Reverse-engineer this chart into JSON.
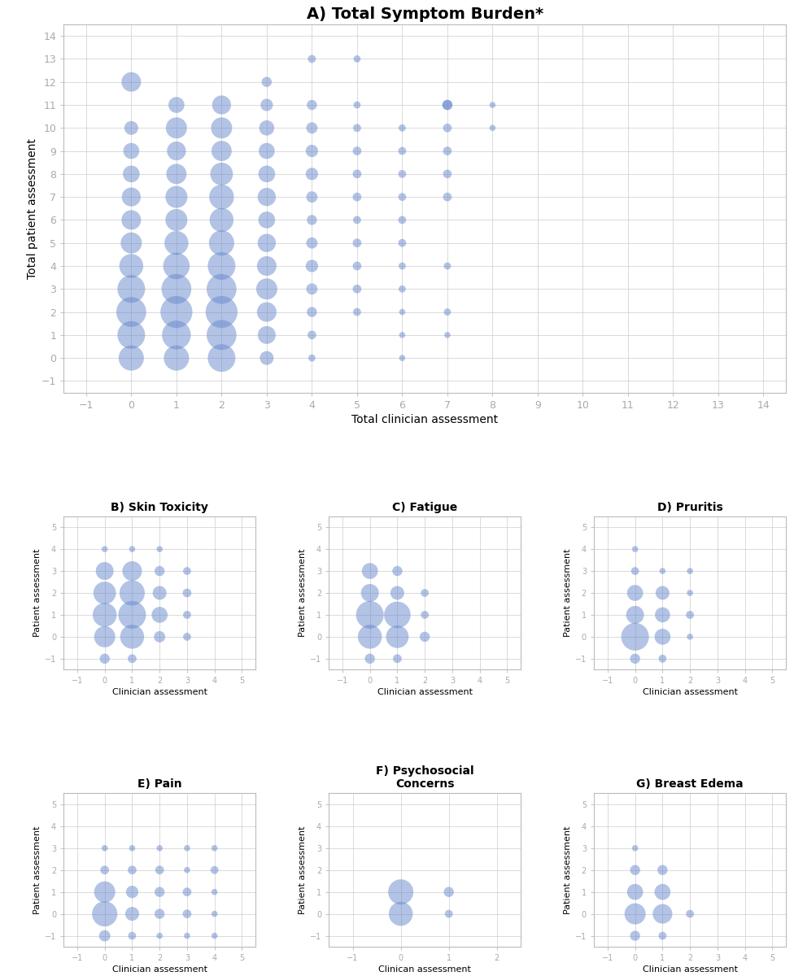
{
  "title_A": "A) Total Symptom Burden*",
  "xlabel_A": "Total clinician assessment",
  "ylabel_A": "Total patient assessment",
  "xlim_A": [
    -1.5,
    14.5
  ],
  "ylim_A": [
    -1.5,
    14.5
  ],
  "xticks_A": [
    -1,
    0,
    1,
    2,
    3,
    4,
    5,
    6,
    7,
    8,
    9,
    10,
    11,
    12,
    13,
    14
  ],
  "yticks_A": [
    -1,
    0,
    1,
    2,
    3,
    4,
    5,
    6,
    7,
    8,
    9,
    10,
    11,
    12,
    13,
    14
  ],
  "bubble_color": "#6688cc",
  "bubble_alpha": 0.5,
  "panel_A_data": [
    [
      0,
      12,
      300
    ],
    [
      0,
      10,
      150
    ],
    [
      0,
      9,
      200
    ],
    [
      0,
      8,
      220
    ],
    [
      0,
      7,
      280
    ],
    [
      0,
      6,
      300
    ],
    [
      0,
      5,
      350
    ],
    [
      0,
      4,
      450
    ],
    [
      0,
      3,
      600
    ],
    [
      0,
      2,
      700
    ],
    [
      0,
      1,
      600
    ],
    [
      0,
      0,
      500
    ],
    [
      1,
      11,
      200
    ],
    [
      1,
      10,
      350
    ],
    [
      1,
      9,
      280
    ],
    [
      1,
      8,
      320
    ],
    [
      1,
      7,
      380
    ],
    [
      1,
      6,
      380
    ],
    [
      1,
      5,
      450
    ],
    [
      1,
      4,
      550
    ],
    [
      1,
      3,
      700
    ],
    [
      1,
      2,
      800
    ],
    [
      1,
      1,
      650
    ],
    [
      1,
      0,
      500
    ],
    [
      2,
      11,
      280
    ],
    [
      2,
      10,
      350
    ],
    [
      2,
      9,
      320
    ],
    [
      2,
      8,
      400
    ],
    [
      2,
      7,
      480
    ],
    [
      2,
      6,
      450
    ],
    [
      2,
      5,
      500
    ],
    [
      2,
      4,
      600
    ],
    [
      2,
      3,
      700
    ],
    [
      2,
      2,
      800
    ],
    [
      2,
      1,
      700
    ],
    [
      2,
      0,
      600
    ],
    [
      3,
      12,
      80
    ],
    [
      3,
      11,
      120
    ],
    [
      3,
      10,
      180
    ],
    [
      3,
      9,
      200
    ],
    [
      3,
      8,
      220
    ],
    [
      3,
      7,
      260
    ],
    [
      3,
      6,
      220
    ],
    [
      3,
      5,
      260
    ],
    [
      3,
      4,
      300
    ],
    [
      3,
      3,
      350
    ],
    [
      3,
      2,
      300
    ],
    [
      3,
      1,
      250
    ],
    [
      3,
      0,
      150
    ],
    [
      4,
      13,
      50
    ],
    [
      4,
      11,
      80
    ],
    [
      4,
      10,
      100
    ],
    [
      4,
      9,
      120
    ],
    [
      4,
      8,
      120
    ],
    [
      4,
      7,
      100
    ],
    [
      4,
      6,
      80
    ],
    [
      4,
      5,
      100
    ],
    [
      4,
      4,
      120
    ],
    [
      4,
      3,
      100
    ],
    [
      4,
      2,
      80
    ],
    [
      4,
      1,
      60
    ],
    [
      4,
      0,
      40
    ],
    [
      5,
      13,
      40
    ],
    [
      5,
      11,
      40
    ],
    [
      5,
      10,
      50
    ],
    [
      5,
      9,
      60
    ],
    [
      5,
      8,
      60
    ],
    [
      5,
      7,
      60
    ],
    [
      5,
      6,
      50
    ],
    [
      5,
      5,
      60
    ],
    [
      5,
      4,
      60
    ],
    [
      5,
      3,
      60
    ],
    [
      5,
      2,
      50
    ],
    [
      6,
      10,
      40
    ],
    [
      6,
      9,
      50
    ],
    [
      6,
      8,
      50
    ],
    [
      6,
      7,
      50
    ],
    [
      6,
      6,
      50
    ],
    [
      6,
      5,
      50
    ],
    [
      6,
      4,
      40
    ],
    [
      6,
      3,
      40
    ],
    [
      6,
      2,
      30
    ],
    [
      6,
      1,
      30
    ],
    [
      6,
      0,
      30
    ],
    [
      7,
      11,
      80
    ],
    [
      7,
      11,
      80
    ],
    [
      7,
      10,
      60
    ],
    [
      7,
      9,
      60
    ],
    [
      7,
      8,
      60
    ],
    [
      7,
      7,
      60
    ],
    [
      7,
      4,
      40
    ],
    [
      7,
      2,
      40
    ],
    [
      7,
      1,
      30
    ],
    [
      8,
      11,
      30
    ],
    [
      8,
      10,
      30
    ]
  ],
  "panel_B_title": "B) Skin Toxicity",
  "panel_B_xlabel": "Clinician assessment",
  "panel_B_ylabel": "Patient assessment",
  "panel_B_xlim": [
    -1.5,
    5.5
  ],
  "panel_B_ylim": [
    -1.5,
    5.5
  ],
  "panel_B_xticks": [
    -1,
    0,
    1,
    2,
    3,
    4,
    5
  ],
  "panel_B_yticks": [
    -1,
    0,
    1,
    2,
    3,
    4,
    5
  ],
  "panel_B_data": [
    [
      0,
      4,
      30
    ],
    [
      1,
      4,
      30
    ],
    [
      2,
      4,
      30
    ],
    [
      0,
      3,
      250
    ],
    [
      1,
      3,
      300
    ],
    [
      2,
      3,
      80
    ],
    [
      3,
      3,
      50
    ],
    [
      0,
      2,
      400
    ],
    [
      1,
      2,
      500
    ],
    [
      2,
      2,
      150
    ],
    [
      3,
      2,
      60
    ],
    [
      0,
      1,
      450
    ],
    [
      1,
      1,
      600
    ],
    [
      2,
      1,
      200
    ],
    [
      3,
      1,
      50
    ],
    [
      0,
      0,
      350
    ],
    [
      1,
      0,
      450
    ],
    [
      2,
      0,
      100
    ],
    [
      3,
      0,
      50
    ],
    [
      0,
      -1,
      80
    ],
    [
      1,
      -1,
      60
    ]
  ],
  "panel_C_title": "C) Fatigue",
  "panel_C_xlabel": "Clinician assessment",
  "panel_C_ylabel": "Patient assessment",
  "panel_C_xlim": [
    -1.5,
    5.5
  ],
  "panel_C_ylim": [
    -1.5,
    5.5
  ],
  "panel_C_xticks": [
    -1,
    0,
    1,
    2,
    3,
    4,
    5
  ],
  "panel_C_yticks": [
    -1,
    0,
    1,
    2,
    3,
    4,
    5
  ],
  "panel_C_data": [
    [
      0,
      3,
      200
    ],
    [
      1,
      3,
      80
    ],
    [
      0,
      2,
      250
    ],
    [
      1,
      2,
      150
    ],
    [
      2,
      2,
      50
    ],
    [
      0,
      1,
      600
    ],
    [
      1,
      1,
      550
    ],
    [
      2,
      1,
      50
    ],
    [
      0,
      0,
      450
    ],
    [
      1,
      0,
      400
    ],
    [
      2,
      0,
      80
    ],
    [
      0,
      -1,
      80
    ],
    [
      1,
      -1,
      60
    ]
  ],
  "panel_D_title": "D) Pruritis",
  "panel_D_xlabel": "Clinician assessment",
  "panel_D_ylabel": "Patient assessment",
  "panel_D_xlim": [
    -1.5,
    5.5
  ],
  "panel_D_ylim": [
    -1.5,
    5.5
  ],
  "panel_D_xticks": [
    -1,
    0,
    1,
    2,
    3,
    4,
    5
  ],
  "panel_D_yticks": [
    -1,
    0,
    1,
    2,
    3,
    4,
    5
  ],
  "panel_D_data": [
    [
      0,
      4,
      30
    ],
    [
      0,
      3,
      50
    ],
    [
      1,
      3,
      30
    ],
    [
      2,
      3,
      30
    ],
    [
      0,
      2,
      200
    ],
    [
      1,
      2,
      150
    ],
    [
      2,
      2,
      30
    ],
    [
      0,
      1,
      250
    ],
    [
      1,
      1,
      180
    ],
    [
      2,
      1,
      50
    ],
    [
      0,
      0,
      600
    ],
    [
      1,
      0,
      200
    ],
    [
      2,
      0,
      30
    ],
    [
      0,
      -1,
      80
    ],
    [
      1,
      -1,
      50
    ]
  ],
  "panel_E_title": "E) Pain",
  "panel_E_xlabel": "Clinician assessment",
  "panel_E_ylabel": "Patient assessment",
  "panel_E_xlim": [
    -1.5,
    5.5
  ],
  "panel_E_ylim": [
    -1.5,
    5.5
  ],
  "panel_E_xticks": [
    -1,
    0,
    1,
    2,
    3,
    4,
    5
  ],
  "panel_E_yticks": [
    -1,
    0,
    1,
    2,
    3,
    4,
    5
  ],
  "panel_E_data": [
    [
      0,
      3,
      30
    ],
    [
      1,
      3,
      30
    ],
    [
      2,
      3,
      30
    ],
    [
      3,
      3,
      30
    ],
    [
      4,
      3,
      30
    ],
    [
      0,
      2,
      60
    ],
    [
      1,
      2,
      60
    ],
    [
      2,
      2,
      60
    ],
    [
      3,
      2,
      30
    ],
    [
      4,
      2,
      50
    ],
    [
      0,
      1,
      350
    ],
    [
      1,
      1,
      120
    ],
    [
      2,
      1,
      80
    ],
    [
      3,
      1,
      60
    ],
    [
      4,
      1,
      30
    ],
    [
      0,
      0,
      500
    ],
    [
      1,
      0,
      150
    ],
    [
      2,
      0,
      80
    ],
    [
      3,
      0,
      60
    ],
    [
      4,
      0,
      30
    ],
    [
      0,
      -1,
      100
    ],
    [
      1,
      -1,
      50
    ],
    [
      2,
      -1,
      30
    ],
    [
      3,
      -1,
      30
    ],
    [
      4,
      -1,
      30
    ]
  ],
  "panel_F_title": "F) Psychosocial\nConcerns",
  "panel_F_xlabel": "Clinican assessment",
  "panel_F_ylabel": "Patient assessment",
  "panel_F_xlim": [
    -1.5,
    2.5
  ],
  "panel_F_ylim": [
    -1.5,
    5.5
  ],
  "panel_F_xticks": [
    -1,
    0,
    1,
    2
  ],
  "panel_F_yticks": [
    -1,
    0,
    1,
    2,
    3,
    4,
    5
  ],
  "panel_F_data": [
    [
      0,
      1,
      500
    ],
    [
      1,
      1,
      80
    ],
    [
      0,
      0,
      450
    ],
    [
      1,
      0,
      50
    ]
  ],
  "panel_G_title": "G) Breast Edema",
  "panel_G_xlabel": "Clinician assessment",
  "panel_G_ylabel": "Patient assessment",
  "panel_G_xlim": [
    -1.5,
    5.5
  ],
  "panel_G_ylim": [
    -1.5,
    5.5
  ],
  "panel_G_xticks": [
    -1,
    0,
    1,
    2,
    3,
    4,
    5
  ],
  "panel_G_yticks": [
    -1,
    0,
    1,
    2,
    3,
    4,
    5
  ],
  "panel_G_data": [
    [
      0,
      3,
      30
    ],
    [
      0,
      2,
      80
    ],
    [
      1,
      2,
      80
    ],
    [
      0,
      1,
      200
    ],
    [
      1,
      1,
      200
    ],
    [
      0,
      0,
      350
    ],
    [
      1,
      0,
      300
    ],
    [
      2,
      0,
      50
    ],
    [
      0,
      -1,
      80
    ],
    [
      1,
      -1,
      50
    ]
  ]
}
